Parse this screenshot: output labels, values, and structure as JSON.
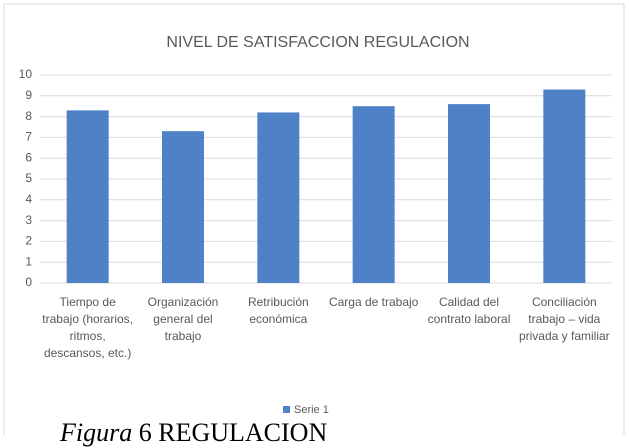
{
  "chart_data": {
    "type": "bar",
    "title": "NIVEL DE SATISFACCION REGULACION",
    "categories": [
      "Tiempo de trabajo (horarios, ritmos, descansos, etc.)",
      "Organización general del trabajo",
      "Retribución económica",
      "Carga de trabajo",
      "Calidad del contrato laboral",
      "Conciliación trabajo – vida privada y familiar"
    ],
    "series": [
      {
        "name": "Serie 1",
        "color": "#4f81c7",
        "values": [
          8.3,
          7.3,
          8.2,
          8.5,
          8.6,
          9.3
        ]
      }
    ],
    "ylim": [
      0,
      10
    ],
    "yticks": [
      0,
      1,
      2,
      3,
      4,
      5,
      6,
      7,
      8,
      9,
      10
    ],
    "grid": true,
    "legend": "bottom"
  },
  "caption": {
    "label": "Figura",
    "text": "6 REGULACION"
  }
}
